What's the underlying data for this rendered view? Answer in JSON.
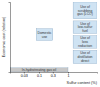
{
  "chart_data": {
    "type": "region",
    "x_label": "Sulfur content (%)",
    "y_label": "Economic cost (relative)",
    "log": "x",
    "xlim": [
      0.01,
      10
    ],
    "xticks": [
      0.03,
      0.1,
      0.3,
      1
    ],
    "ylim": [
      0,
      100
    ],
    "tick_labels": "x",
    "regions": [
      {
        "lines": [
          "In-hydrotreating gas oil"
        ],
        "x": [
          0.01,
          1
        ],
        "y": [
          0,
          6
        ],
        "color": "#c8c8c8"
      },
      {
        "lines": [
          "Domestic",
          "use"
        ],
        "x": [
          0.08,
          0.3
        ],
        "y": [
          45,
          62
        ],
        "color": "#cfe3f3"
      },
      {
        "lines": [
          "Use of",
          "scrubbing",
          "gas (LCO)"
        ],
        "x": [
          1.5,
          10
        ],
        "y": [
          76,
          100
        ],
        "color": "#cfe3f3"
      },
      {
        "lines": [
          "Use of",
          "low-sulfur",
          "fuel"
        ],
        "x": [
          1.5,
          10
        ],
        "y": [
          55,
          73
        ],
        "color": "#cfe3f3"
      },
      {
        "lines": [
          "Use of",
          "loss",
          "reduction"
        ],
        "x": [
          1.5,
          10
        ],
        "y": [
          34,
          52
        ],
        "color": "#cfe3f3"
      },
      {
        "lines": [
          "Use of",
          "distillation",
          "direct"
        ],
        "x": [
          1.5,
          10
        ],
        "y": [
          12,
          31
        ],
        "color": "#cfe3f3"
      }
    ]
  }
}
